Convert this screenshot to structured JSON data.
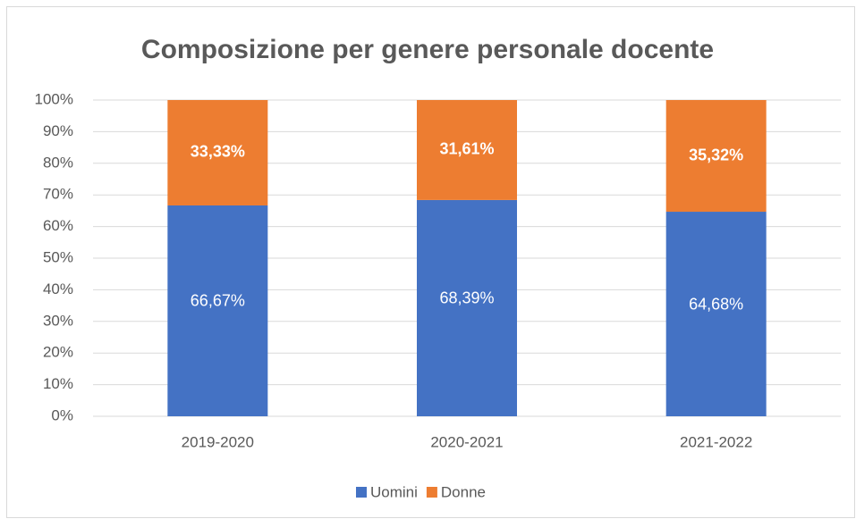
{
  "chart_data": {
    "type": "stacked_bar",
    "title": "Composizione per genere personale docente",
    "categories": [
      "2019-2020",
      "2020-2021",
      "2021-2022"
    ],
    "series": [
      {
        "name": "Uomini",
        "color": "#4472c4",
        "values": [
          66.67,
          68.39,
          64.68
        ],
        "value_labels": [
          "66,67%",
          "68,39%",
          "64,68%"
        ]
      },
      {
        "name": "Donne",
        "color": "#ed7d31",
        "values": [
          33.33,
          31.61,
          35.32
        ],
        "value_labels": [
          "33,33%",
          "31,61%",
          "35,32%"
        ]
      }
    ],
    "ylim": [
      0,
      100
    ],
    "yticks": [
      {
        "value": 0,
        "label": "0%"
      },
      {
        "value": 10,
        "label": "10%"
      },
      {
        "value": 20,
        "label": "20%"
      },
      {
        "value": 30,
        "label": "30%"
      },
      {
        "value": 40,
        "label": "40%"
      },
      {
        "value": 50,
        "label": "50%"
      },
      {
        "value": 60,
        "label": "60%"
      },
      {
        "value": 70,
        "label": "70%"
      },
      {
        "value": 80,
        "label": "80%"
      },
      {
        "value": 90,
        "label": "90%"
      },
      {
        "value": 100,
        "label": "100%"
      }
    ],
    "grid": true,
    "legend": "bottom"
  }
}
